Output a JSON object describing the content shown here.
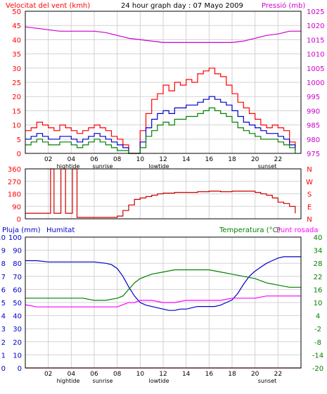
{
  "colors": {
    "background": "#ffffff",
    "gridline": "#d3d3d3",
    "frame": "#000000",
    "wind_speed": "#ff0000",
    "wind_avg": "#0000cc",
    "wind_gust_low": "#008000",
    "pressure": "#cc00cc",
    "wind_dir": "#cc0000",
    "rain": "#cc0000",
    "humidity": "#0000cc",
    "temperature": "#008000",
    "dew_point": "#ff00ff",
    "left_label": "#ff0000",
    "right_label_top": "#cc00cc",
    "right_label_temp": "#008000",
    "humidity_label": "#0000cc",
    "rain_axis": "#0000cc",
    "top_axis_left": "#ff0000",
    "top_axis_right": "#cc00cc",
    "temp_axis": "#008000"
  },
  "header": {
    "left_title": "Velocitat del vent (kmh)",
    "center_title": "24 hour graph day : 07 Mayo 2009",
    "right_title": "Pressió (mb)"
  },
  "bottom_header": {
    "left_title": "Pluja (mm)",
    "mid_title": "Humitat",
    "right_title_a": "Temperatura (°C)",
    "right_title_b": "Punt rosada"
  },
  "x_ticks": [
    "02",
    "04",
    "06",
    "08",
    "10",
    "12",
    "14",
    "16",
    "18",
    "20",
    "22"
  ],
  "event_labels": {
    "hightide": "hightide",
    "sunrise": "sunrise",
    "lowtide": "lowtide",
    "sunset": "sunset"
  },
  "chart_data": [
    {
      "type": "line",
      "name_panel": "wind-pressure",
      "x_range_hours": [
        0,
        24
      ],
      "left_axis": {
        "ticks": [
          "0",
          "5",
          "10",
          "15",
          "20",
          "25",
          "30",
          "35",
          "40",
          "45",
          "50"
        ],
        "ylim": [
          0,
          50
        ]
      },
      "right_axis": {
        "ticks": [
          "975",
          "980",
          "985",
          "990",
          "995",
          "1000",
          "1005",
          "1010",
          "1015",
          "1020",
          "1025"
        ],
        "ylim": [
          975,
          1025
        ]
      },
      "series": [
        {
          "key": "pressure",
          "axis": "right",
          "x": [
            0,
            1,
            2,
            3,
            4,
            5,
            6,
            7,
            8,
            9,
            10,
            11,
            12,
            13,
            14,
            15,
            16,
            17,
            18,
            19,
            20,
            21,
            22,
            23,
            24
          ],
          "values": [
            1019.5,
            1019,
            1018.5,
            1018,
            1018,
            1018,
            1018,
            1017.5,
            1016.5,
            1015.5,
            1015,
            1014.5,
            1014,
            1014,
            1014,
            1014,
            1014,
            1014,
            1014,
            1014.5,
            1015.5,
            1016.5,
            1017,
            1018,
            1018
          ]
        },
        {
          "key": "wind_speed",
          "axis": "left",
          "x": [
            0,
            0.5,
            1,
            1.5,
            2,
            2.5,
            3,
            3.5,
            4,
            4.5,
            5,
            5.5,
            6,
            6.5,
            7,
            7.5,
            8,
            8.5,
            9,
            9.5,
            10,
            10.5,
            11,
            11.5,
            12,
            12.5,
            13,
            13.5,
            14,
            14.5,
            15,
            15.5,
            16,
            16.5,
            17,
            17.5,
            18,
            18.5,
            19,
            19.5,
            20,
            20.5,
            21,
            21.5,
            22,
            22.5,
            23,
            23.5
          ],
          "values": [
            8,
            9,
            11,
            10,
            9,
            8,
            10,
            9,
            8,
            7,
            8,
            9,
            10,
            9,
            8,
            6,
            5,
            3,
            0,
            0,
            8,
            14,
            19,
            21,
            24,
            22,
            25,
            24,
            26,
            25,
            28,
            29,
            30,
            28,
            27,
            24,
            21,
            18,
            16,
            14,
            12,
            10,
            9,
            10,
            9,
            8,
            4,
            1
          ]
        },
        {
          "key": "wind_avg",
          "axis": "left",
          "x": [
            0,
            0.5,
            1,
            1.5,
            2,
            2.5,
            3,
            3.5,
            4,
            4.5,
            5,
            5.5,
            6,
            6.5,
            7,
            7.5,
            8,
            8.5,
            9,
            9.5,
            10,
            10.5,
            11,
            11.5,
            12,
            12.5,
            13,
            13.5,
            14,
            14.5,
            15,
            15.5,
            16,
            16.5,
            17,
            17.5,
            18,
            18.5,
            19,
            19.5,
            20,
            20.5,
            21,
            21.5,
            22,
            22.5,
            23,
            23.5
          ],
          "values": [
            5,
            6,
            7,
            6,
            5,
            5,
            6,
            6,
            5,
            4,
            5,
            6,
            7,
            6,
            5,
            4,
            3,
            2,
            0,
            0,
            4,
            9,
            12,
            14,
            15,
            14,
            16,
            16,
            17,
            17,
            18,
            19,
            20,
            19,
            18,
            17,
            15,
            13,
            11,
            10,
            9,
            8,
            7,
            7,
            6,
            5,
            3,
            1
          ]
        },
        {
          "key": "wind_gust_low",
          "axis": "left",
          "x": [
            0,
            0.5,
            1,
            1.5,
            2,
            2.5,
            3,
            3.5,
            4,
            4.5,
            5,
            5.5,
            6,
            6.5,
            7,
            7.5,
            8,
            8.5,
            9,
            9.5,
            10,
            10.5,
            11,
            11.5,
            12,
            12.5,
            13,
            13.5,
            14,
            14.5,
            15,
            15.5,
            16,
            16.5,
            17,
            17.5,
            18,
            18.5,
            19,
            19.5,
            20,
            20.5,
            21,
            21.5,
            22,
            22.5,
            23,
            23.5
          ],
          "values": [
            3,
            4,
            5,
            4,
            3,
            3,
            4,
            4,
            3,
            2,
            3,
            4,
            5,
            4,
            3,
            2,
            1,
            1,
            0,
            0,
            2,
            6,
            8,
            10,
            11,
            10,
            12,
            12,
            13,
            13,
            14,
            15,
            16,
            15,
            14,
            13,
            11,
            9,
            8,
            7,
            6,
            5,
            5,
            5,
            4,
            3,
            2,
            0
          ]
        }
      ]
    },
    {
      "type": "line",
      "name_panel": "wind-direction",
      "x_range_hours": [
        0,
        24
      ],
      "left_axis": {
        "ticks": [
          "0",
          "90",
          "180",
          "270",
          "360"
        ],
        "ylim": [
          0,
          360
        ]
      },
      "right_axis": {
        "ticks": [
          "N",
          "E",
          "S",
          "W",
          "N"
        ]
      },
      "series": [
        {
          "key": "wind_dir",
          "x": [
            0,
            0.5,
            1,
            1.5,
            2,
            2.2,
            2.3,
            2.5,
            3,
            3.1,
            3.2,
            3.5,
            4,
            4.1,
            4.2,
            4.5,
            5,
            5.5,
            6,
            6.5,
            7,
            7.5,
            8,
            8.5,
            9,
            9.5,
            10,
            10.5,
            11,
            11.5,
            12,
            13,
            14,
            15,
            16,
            17,
            18,
            19,
            20,
            20.5,
            21,
            21.5,
            22,
            22.5,
            23,
            23.5
          ],
          "values": [
            40,
            40,
            40,
            40,
            40,
            360,
            360,
            40,
            40,
            360,
            360,
            40,
            40,
            360,
            360,
            10,
            10,
            10,
            10,
            10,
            10,
            10,
            20,
            60,
            100,
            140,
            150,
            160,
            170,
            180,
            185,
            190,
            190,
            195,
            200,
            195,
            200,
            200,
            190,
            180,
            170,
            150,
            120,
            110,
            90,
            40
          ]
        }
      ]
    },
    {
      "type": "line",
      "name_panel": "rain-humidity-temperature",
      "x_range_hours": [
        0,
        24
      ],
      "rain_axis": {
        "ticks": [
          "0",
          "1",
          "2",
          "3",
          "4",
          "5",
          "6",
          "7",
          "8",
          "9",
          "10"
        ],
        "ylim": [
          0,
          10
        ]
      },
      "humidity_axis": {
        "ticks": [
          "0",
          "10",
          "20",
          "30",
          "40",
          "50",
          "60",
          "70",
          "80",
          "90",
          "100"
        ],
        "ylim": [
          0,
          100
        ]
      },
      "temp_axis": {
        "ticks": [
          "-20",
          "-14",
          "-8",
          "-2",
          "4",
          "10",
          "16",
          "22",
          "28",
          "34",
          "40"
        ],
        "ylim": [
          -20,
          40
        ]
      },
      "series": [
        {
          "key": "rain",
          "axis": "rain",
          "x": [
            0,
            24
          ],
          "values": [
            0,
            0
          ]
        },
        {
          "key": "humidity",
          "axis": "humidity",
          "x": [
            0,
            1,
            2,
            3,
            4,
            5,
            6,
            7,
            7.5,
            8,
            8.5,
            9,
            9.5,
            10,
            10.5,
            11,
            11.5,
            12,
            12.5,
            13,
            13.5,
            14,
            14.5,
            15,
            15.5,
            16,
            16.5,
            17,
            17.5,
            18,
            18.5,
            19,
            19.5,
            20,
            20.5,
            21,
            21.5,
            22,
            22.5,
            23,
            24
          ],
          "values": [
            82,
            82,
            81,
            81,
            81,
            81,
            81,
            80,
            79,
            76,
            70,
            62,
            55,
            50,
            48,
            47,
            46,
            45,
            44,
            44,
            45,
            45,
            46,
            47,
            47,
            47,
            47,
            48,
            50,
            52,
            57,
            64,
            70,
            74,
            77,
            80,
            82,
            84,
            85,
            85,
            85
          ]
        },
        {
          "key": "temperature",
          "axis": "temp",
          "x": [
            0,
            1,
            2,
            3,
            4,
            5,
            6,
            7,
            8,
            8.5,
            9,
            9.5,
            10,
            11,
            12,
            13,
            14,
            15,
            16,
            17,
            18,
            19,
            20,
            21,
            22,
            23,
            24
          ],
          "values": [
            12,
            12,
            12,
            12,
            12,
            12,
            11,
            11,
            12,
            13,
            16,
            19,
            21,
            23,
            24,
            25,
            25,
            25,
            25,
            24,
            23,
            22,
            21,
            19,
            18,
            17,
            17
          ]
        },
        {
          "key": "dew_point",
          "axis": "temp",
          "x": [
            0,
            1,
            2,
            3,
            4,
            5,
            6,
            7,
            8,
            8.5,
            9,
            9.5,
            10,
            11,
            12,
            13,
            14,
            15,
            16,
            17,
            18,
            19,
            20,
            21,
            22,
            23,
            24
          ],
          "values": [
            9,
            8,
            8,
            8,
            8,
            8,
            8,
            8,
            8,
            9,
            10,
            10,
            11,
            11,
            10,
            10,
            11,
            11,
            11,
            11,
            12,
            12,
            12,
            13,
            13,
            13,
            13
          ]
        }
      ]
    }
  ]
}
